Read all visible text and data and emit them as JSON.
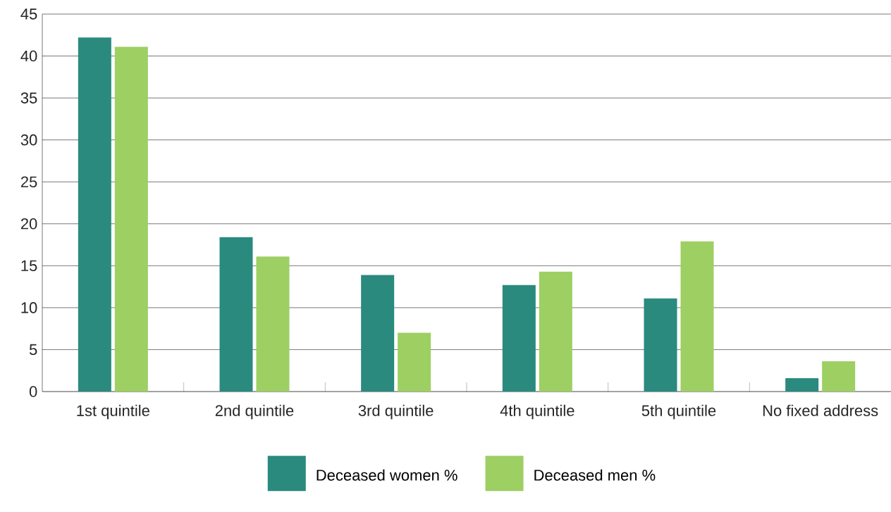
{
  "chart_data": {
    "type": "bar",
    "categories": [
      "1st quintile",
      "2nd quintile",
      "3rd quintile",
      "4th quintile",
      "5th quintile",
      "No fixed address"
    ],
    "series": [
      {
        "name": "Deceased women %",
        "color": "#2a8a7e",
        "values": [
          42.2,
          18.4,
          13.9,
          12.7,
          11.1,
          1.6
        ]
      },
      {
        "name": "Deceased men %",
        "color": "#9dcf63",
        "values": [
          41.1,
          16.1,
          7.0,
          14.3,
          17.9,
          3.6
        ]
      }
    ],
    "ylim": [
      0,
      45
    ],
    "yticks": [
      0,
      5,
      10,
      15,
      20,
      25,
      30,
      35,
      40,
      45
    ],
    "grid": "y",
    "legend": "bottom"
  }
}
